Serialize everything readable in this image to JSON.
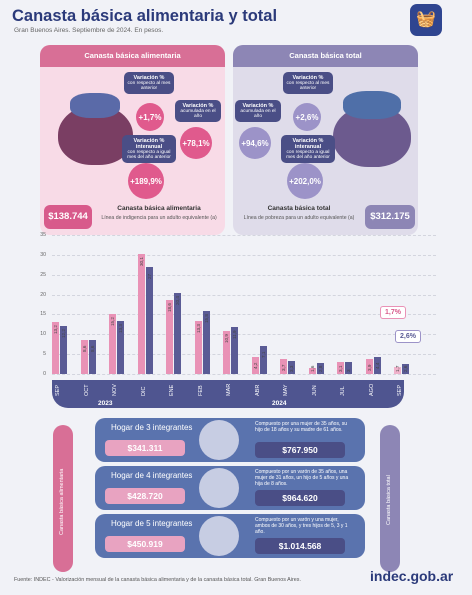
{
  "header": {
    "title": "Canasta básica alimentaria y total",
    "subtitle": "Gran Buenos Aires. Septiembre de 2024. En pesos."
  },
  "cba": {
    "head": "Canasta básica alimentaria",
    "var_monthly_label": "Variación %",
    "var_monthly_sub": "con respecto al mes anterior",
    "var_monthly_value": "+1,7%",
    "var_year_label": "Variación %",
    "var_year_sub": "acumulada en el año",
    "var_year_value": "+78,1%",
    "var_interannual_label": "Variación % interanual",
    "var_interannual_sub": "con respecto a igual mes del año anterior",
    "var_interannual_value": "+189,9%",
    "amount": "$138.744",
    "name": "Canasta básica alimentaria",
    "desc": "Línea de indigencia para un adulto equivalente (a)"
  },
  "cbt": {
    "head": "Canasta básica total",
    "var_monthly_label": "Variación %",
    "var_monthly_sub": "con respecto al mes anterior",
    "var_monthly_value": "+2,6%",
    "var_year_label": "Variación %",
    "var_year_sub": "acumulada en el año",
    "var_year_value": "+94,6%",
    "var_interannual_label": "Variación % interanual",
    "var_interannual_sub": "con respecto a igual mes del año anterior",
    "var_interannual_value": "+202,0%",
    "amount": "$312.175",
    "name": "Canasta básica total",
    "desc": "Línea de pobreza para un adulto equivalente (a)"
  },
  "chart_data": {
    "type": "bar",
    "categories": [
      "SEP",
      "OCT",
      "NOV",
      "DIC",
      "ENE",
      "FEB",
      "MAR",
      "ABR",
      "MAY",
      "JUN",
      "JUL",
      "AGO",
      "SEP"
    ],
    "year_labels": [
      "2023",
      "2024"
    ],
    "ylim": [
      0,
      35
    ],
    "yticks": [
      0,
      5,
      10,
      15,
      20,
      25,
      30,
      35
    ],
    "series": [
      {
        "name": "Canasta básica alimentaria",
        "values": [
          13.2,
          8.6,
          15.2,
          30.1,
          18.6,
          13.3,
          10.9,
          4.2,
          3.7,
          1.6,
          3.1,
          3.9,
          1.7
        ]
      },
      {
        "name": "Canasta básica total",
        "values": [
          12.2,
          8.6,
          13.3,
          27.0,
          20.4,
          15.8,
          11.9,
          7.1,
          3.3,
          2.8,
          3.0,
          4.4,
          2.6
        ]
      }
    ],
    "last_cba_pct": "1,7%",
    "last_cbt_pct": "2,6%",
    "colors": {
      "cba": "#e992b6",
      "cbt": "#5a5b95"
    }
  },
  "hogares": {
    "side_left": "Canasta básica alimentaria",
    "side_right": "Canasta básica total",
    "items": [
      {
        "title": "Hogar de 3 integrantes",
        "cba": "$341.311",
        "cbt": "$767.950",
        "desc": "Compuesto por una mujer de 35 años, su hijo de 18 años y su madre de 61 años."
      },
      {
        "title": "Hogar de 4 integrantes",
        "cba": "$428.720",
        "cbt": "$964.620",
        "desc": "Compuesto por un varón de 35 años, una mujer de 31 años, un hijo de 5 años y una hija de 8 años."
      },
      {
        "title": "Hogar de 5 integrantes",
        "cba": "$450.919",
        "cbt": "$1.014.568",
        "desc": "Compuesto por un varón y una mujer, ambos de 30 años, y tres hijos de 5, 3 y 1 año."
      }
    ]
  },
  "footer": {
    "source": "Fuente: INDEC - Valorización mensual de la canasta básica alimentaria y de la canasta básica total. Gran Buenos Aires.",
    "brand": "indec.gob.ar"
  }
}
